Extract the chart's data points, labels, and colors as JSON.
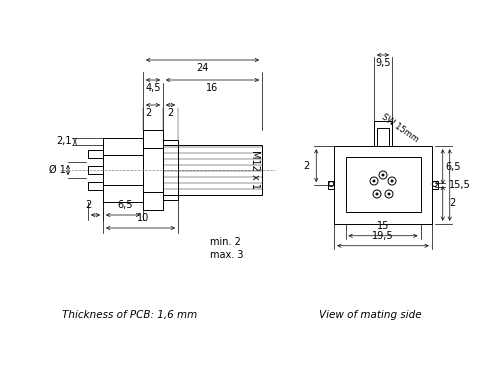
{
  "bg_color": "#ffffff",
  "line_color": "#000000",
  "text_color": "#000000",
  "caption_left": "Thickness of PCB: 1,6 mm",
  "caption_right": "View of mating side",
  "label_m12": "M12 x 1",
  "label_phi1": "Ø 1",
  "label_24": "24",
  "label_4_5": "4,5",
  "label_16": "16",
  "label_2a": "2",
  "label_2b": "2",
  "label_2_1": "2,1",
  "label_2c": "2",
  "label_6_5": "6,5",
  "label_10": "10",
  "label_min2": "min. 2",
  "label_max3": "max. 3",
  "label_9_5": "9,5",
  "label_15": "15",
  "label_19_5": "19,5",
  "label_6_5r": "6,5",
  "label_2d": "2",
  "label_15_5": "15,5",
  "label_2e": "2",
  "label_sw15mm": "SW 15mm"
}
